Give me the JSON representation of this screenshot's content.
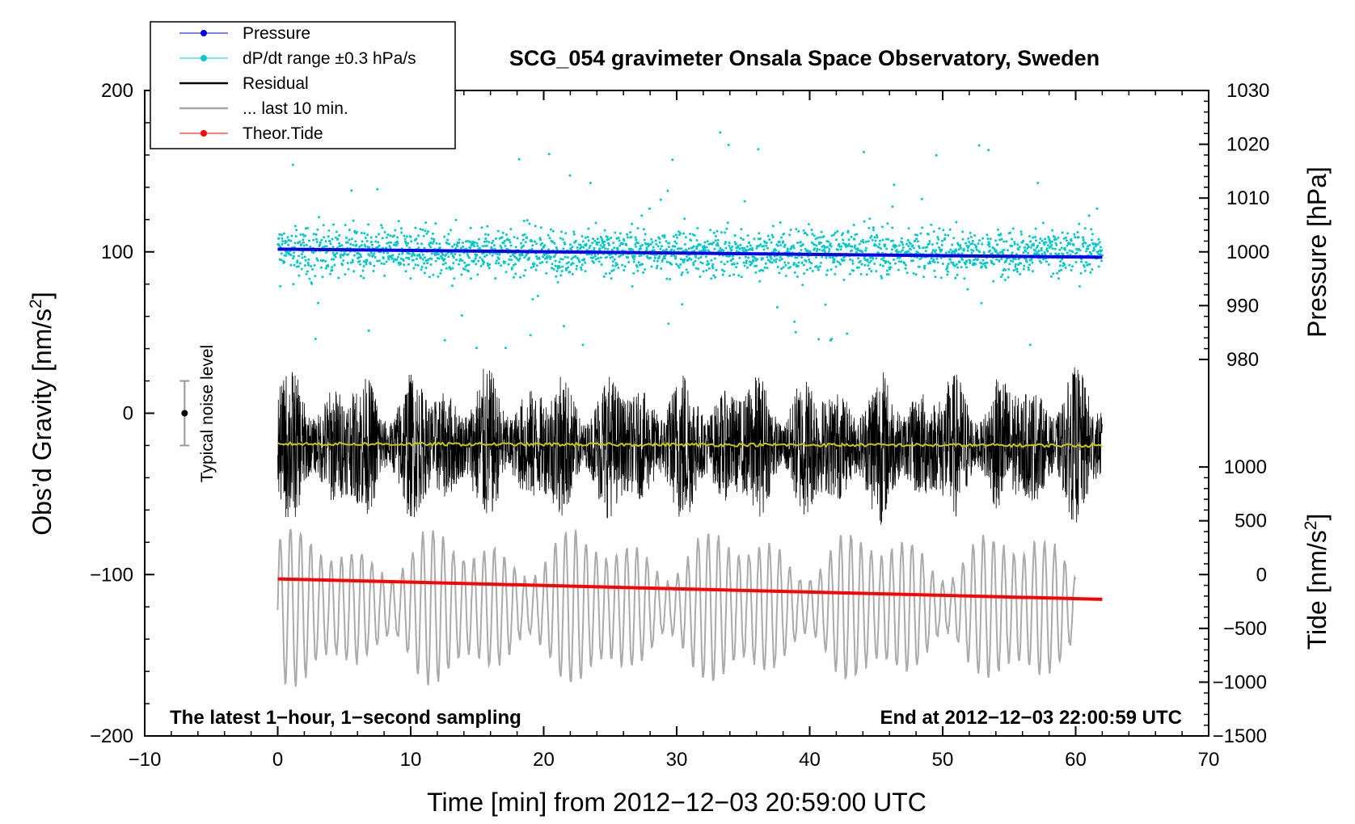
{
  "chart_data": {
    "type": "scatter",
    "title": "SCG_054 gravimeter Onsala Space Observatory, Sweden",
    "xlabel": "Time [min] from 2012−12−03 20:59:00 UTC",
    "ylabel_left": "Obs’d Gravity [nm/s",
    "ylabel_left_sup": "2",
    "ylabel_left_close": "]",
    "ylabel_right_pressure": "Pressure [hPa]",
    "ylabel_right_tide": "Tide [nm/s",
    "ylabel_right_tide_sup": "2",
    "ylabel_right_tide_close": "]",
    "xlim": [
      -10,
      70
    ],
    "ylim_left": [
      -200,
      200
    ],
    "x_ticks": [
      "−10",
      "0",
      "10",
      "20",
      "30",
      "40",
      "50",
      "60",
      "70"
    ],
    "y_ticks_left": [
      "200",
      "100",
      "0",
      "−100",
      "−200"
    ],
    "pressure_axis": {
      "range": [
        980,
        1030
      ],
      "ticks": [
        "1030",
        "1020",
        "1010",
        "1000",
        "990",
        "980"
      ]
    },
    "tide_axis": {
      "range": [
        -1500,
        1000
      ],
      "ticks": [
        "1000",
        "500",
        "0",
        "−500",
        "−1000",
        "−1500"
      ]
    },
    "annotation_left": "The latest 1−hour, 1−second sampling",
    "annotation_right": "End at 2012−12−03 22:00:59 UTC",
    "noise_label": "Typical noise level",
    "noise_level": {
      "x": -7,
      "y": 0,
      "err": 20
    },
    "legend": [
      {
        "label": "Pressure",
        "color": "#0000ee",
        "marker": true
      },
      {
        "label": "dP/dt range ±0.3 hPa/s",
        "color": "#00c8c8",
        "marker": true
      },
      {
        "label": "Residual",
        "color": "#000000",
        "marker": false
      },
      {
        "label": "... last 10 min.",
        "color": "#aaaaaa",
        "marker": false
      },
      {
        "label": "Theor.Tide",
        "color": "#ff0000",
        "marker": true
      }
    ],
    "series": [
      {
        "name": "Pressure",
        "axis": "pressure",
        "color": "#0000ee",
        "x": [
          0,
          62
        ],
        "values": [
          1000.5,
          999.0
        ]
      },
      {
        "name": "dP/dt range ±0.3 hPa/s",
        "axis": "left",
        "color": "#00c8c8",
        "x_range": [
          0,
          62
        ],
        "center": 100,
        "typical_spread": 10,
        "outlier_range": [
          40,
          175
        ]
      },
      {
        "name": "Residual",
        "axis": "left",
        "color": "#000000",
        "x_range": [
          0,
          62
        ],
        "center": -20,
        "amplitude_range": [
          15,
          55
        ]
      },
      {
        "name": "Residual mean",
        "axis": "left",
        "color": "#c8c800",
        "x": [
          0,
          62
        ],
        "values": [
          -19,
          -20
        ]
      },
      {
        "name": "... last 10 min.",
        "axis": "left",
        "color": "#aaaaaa",
        "x_range": [
          0,
          60
        ],
        "center": -120,
        "amplitude_range": [
          15,
          50
        ]
      },
      {
        "name": "Theor.Tide",
        "axis": "tide",
        "color": "#ff0000",
        "x": [
          0,
          62
        ],
        "values": [
          -40,
          -230
        ]
      }
    ]
  }
}
